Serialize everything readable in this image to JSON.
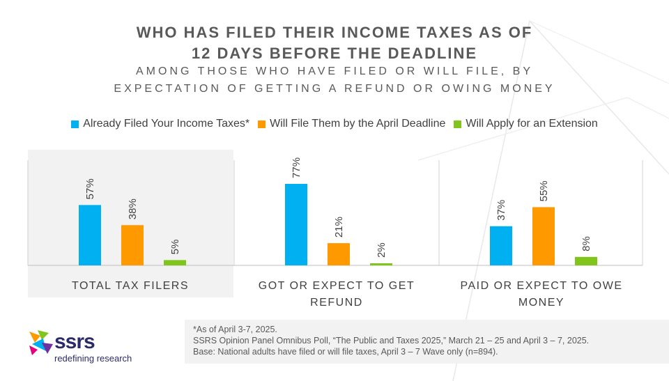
{
  "title_lines": [
    "WHO HAS FILED THEIR INCOME TAXES AS OF",
    "12 DAYS BEFORE THE DEADLINE"
  ],
  "subtitle_lines": [
    "AMONG THOSE WHO HAVE FILED OR WILL FILE, BY",
    "EXPECTATION OF GETTING A REFUND OR OWING MONEY"
  ],
  "colors": {
    "blue": "#00b0f0",
    "orange": "#ff9900",
    "green": "#80c41c",
    "text": "#595959",
    "panel": "#f2f2f2"
  },
  "chart_data": {
    "type": "bar",
    "categories": [
      "TOTAL TAX FILERS",
      "GOT OR EXPECT TO GET REFUND",
      "PAID OR EXPECT TO OWE MONEY"
    ],
    "category_lines": [
      [
        "TOTAL TAX FILERS"
      ],
      [
        "GOT OR EXPECT TO GET",
        "REFUND"
      ],
      [
        "PAID OR EXPECT TO OWE",
        "MONEY"
      ]
    ],
    "series": [
      {
        "name": "Already Filed Your Income Taxes*",
        "values": [
          57,
          77,
          37
        ],
        "labels": [
          "57%",
          "77%",
          "37%"
        ],
        "color": "#00b0f0"
      },
      {
        "name": "Will File Them by the April Deadline",
        "values": [
          38,
          21,
          55
        ],
        "labels": [
          "38%",
          "21%",
          "55%"
        ],
        "color": "#ff9900"
      },
      {
        "name": "Will Apply for an Extension",
        "values": [
          5,
          2,
          8
        ],
        "labels": [
          "5%",
          "2%",
          "8%"
        ],
        "color": "#80c41c"
      }
    ],
    "ylim": [
      0,
      100
    ],
    "legend_position": "top",
    "grid": false
  },
  "footnotes": [
    "*As of April 3-7, 2025.",
    "SSRS Opinion Panel Omnibus Poll, “The Public and Taxes 2025,” March 21 – 25 and April 3 – 7, 2025.",
    "Base: National adults have filed or will file taxes, April 3 – 7 Wave only (n=894)."
  ],
  "logo": {
    "name": "ssrs",
    "tagline": "redefining research",
    "icon": "ssrs-logo-icon"
  }
}
